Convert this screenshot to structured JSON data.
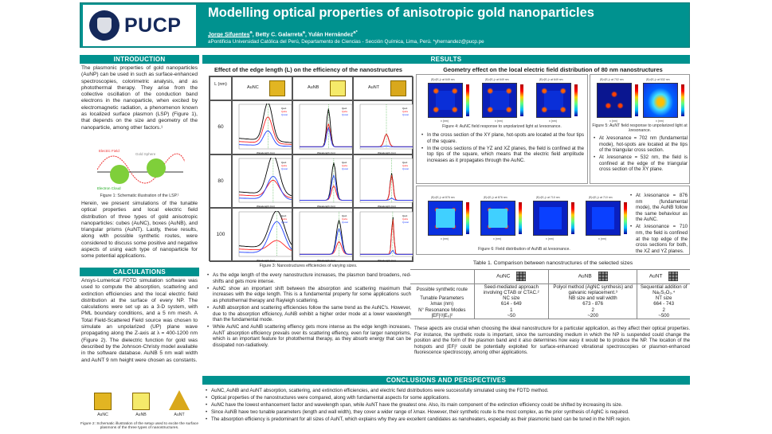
{
  "header": {
    "logo_text": "PUCP",
    "title": "Modelling optical properties of anisotropic gold nanoparticles",
    "authors": [
      {
        "name": "Jorge Sifuentes",
        "sup": "a"
      },
      {
        "name": "Betty C. Galarreta",
        "sup": "a"
      },
      {
        "name": "Yulán Hernández",
        "sup": "a*"
      }
    ],
    "affiliation": "aPontificia Universidad Católica del Perú, Departamento de Ciencias - Sección Química, Lima, Perú. *yhernandez@pucp.pe"
  },
  "intro": {
    "heading": "INTRODUCTION",
    "p1": "The plasmonic properties of gold nanoparticles (AuNP) can be used in such as surface-enhanced spectroscopies, colorimetric analysis, and as photothermal therapy. They arise from the collective oscillation of the conduction band electrons in the nanoparticle, when excited by electromagnetic radiation, a phenomenon known as localized surface plasmon (LSP) (Figure 1), that depends on the size and geometry of the nanoparticle, among other factors.¹",
    "fig1_labels": {
      "field": "Electric Field",
      "sphere": "Gold Sphere",
      "cloud": "Electron Cloud"
    },
    "fig1_caption": "Figure 1: Schematic illustration of the LSP.¹",
    "p2": "Herein, we present simulations of the tunable optical properties and local electric field distribution of three types of gold anisotropic nanoparticles: cubes (AuNC), boxes (AuNB), and triangular prisms (AuNT). Lastly, these results, along with possible synthetic routes, were considered to discuss some positive and negative aspects of using each type of nanoparticle for some potential applications."
  },
  "calc": {
    "heading": "CALCULATIONS",
    "p": "Ansys-Lumerical FDTD simulation software was used to compute the absorption, scattering and extinction efficiencies and the local electric field distribution at the surface of every NP. The calculations were set up as a 3-D system, with PML boundary conditions, and a 5 nm mesh. A Total Field-Scattered Field source was chosen to simulate an unpolarized (UP) plane wave propagating along the Z-axis at λ = 400-1200 nm (Figure 2). The dielectric function for gold was described by the Johnson-Christy model available in the software database. AuNB 5 nm wall width and AuNT 9 nm height were chosen as constants.",
    "shapes": [
      "AuNC",
      "AuNB",
      "AuNT"
    ],
    "fig2_caption": "Figure 2: Schematic illustration of the setup used to excite the surface plasmons of the three types of nanostructures."
  },
  "results": {
    "heading": "RESULTS",
    "edge": {
      "title": "Effect of the edge length (L) on the efficiency of the nanostructures",
      "row_header": "L (nm)",
      "columns": [
        "AuNC",
        "AuNB",
        "AuNT"
      ],
      "rows": [
        "60",
        "80",
        "100"
      ],
      "legend": [
        "Qext",
        "Qabs",
        "Qscat"
      ],
      "xlabel": "Wavelength (nm)",
      "caption": "Figure 3: Nanostructures efficiencies of varying sizes.",
      "bullets": [
        "As the edge length of the every nanostructure increases, the plasmon band broadens, red-shifts and gets more intense.",
        "AuNC show an important shift between the absorption and scattering maximum that increases with the edge length. This is a fundamental property for some applications such as photothermal therapy and Rayleigh scattering.",
        "AuNB absorption and scattering efficiencies follow the same trend as the AuNC's. However, due to the absorption efficiency, AuNB exhibit a higher order mode at a lower wavelength than the fundamental mode.",
        "While AuNC and AuNB scattering effiency gets more intense as the edge length increases, AuNT absorption efficiency prevails over its scattering effiency, even for larger nanoprisms, which is an important feature for photothermal therapy, as they absorb energy that can be dissipated non-radiatively."
      ]
    },
    "geometry": {
      "title": "Geometry effect on the local electric field distribution of 80 nm nanostructures",
      "fig4_maps": [
        "|E|²/|E₀|² at 649 nm",
        "|E|²/|E₀|² at 649 nm",
        "|E|²/|E₀|² at 649 nm"
      ],
      "fig4_caption": "Figure 4: AuNC field response to unpolarized light at λresonance.",
      "fig4_bullets": [
        "In the cross section of the XY plane, hot-spots are located at the four tips of the square.",
        "In the cross sections of the YZ and XZ planes, the field is confined at the top tips of the square, which means that the electric field amplitude increases as it propagates through the AuNC."
      ],
      "fig5_maps": [
        "|E|²/|E₀|² at 702 nm",
        "|E|²/|E₀|² at 532 nm"
      ],
      "fig5_caption": "Figure 5: AuNT field response to unpolarized light at λresonance.",
      "fig5_bullets": [
        "At λresonance = 702 nm (fundamental mode), hot-spots are located at the tips of the triangular cross section.",
        "At λresonance = 532 nm, the field is confined at the edge of the triangular cross section of the XY plane."
      ],
      "fig6_maps": [
        "|E|²/|E₀|² at 876 nm",
        "|E|²/|E₀|² at 876 nm",
        "|E|²/|E₀|² at 710 nm",
        "|E|²/|E₀|² at 710 nm"
      ],
      "fig6_caption": "Figure 6: Field distribution of AuNB at λresonance.",
      "fig6_bullets": [
        "At λresonance = 876 nm (fundamental mode), the AuNB follow the same behaviour as the AuNC.",
        "At λresonance = 710 nm, the field is confined at the top edge of the cross sections for both, the XZ and YZ planes."
      ],
      "axis": "x (nm)"
    },
    "table": {
      "caption": "Table 1. Comparison between nanostructures of the selected sizes",
      "columns": [
        "",
        "AuNC",
        "AuNB",
        "AuNT"
      ],
      "rows": [
        [
          "Possible synthetic route",
          "Seed-mediated approach involving CTAB or CTAC.²",
          "Polyol method (AgNC synthesis) and galvanic replacement.³",
          "Sequential addition of Na₂S₂O₃.⁴"
        ],
        [
          "Tunable Parameters",
          "NC size",
          "NB size and wall width",
          "NT size"
        ],
        [
          "λmax (nm)",
          "614 - 649",
          "673 - 876",
          "664 - 743"
        ],
        [
          "N° Resonance Modes",
          "1",
          "2",
          "2"
        ],
        [
          "|EF|²/|E₀|²",
          "~50",
          "~200",
          "~500"
        ]
      ],
      "note": "These apects are crucial when choosing the ideal nanostructure for a particular application, as they affect their optical properties. For instance, the synthetic route is important, since the surrounding medium in which the NP is suspended could change the position and the form of the plasmon band and it also determines how easy it would be to produce the NP. The location of the hotspots and |EF|² could be potentially exploited for surface-enhanced vibrational spectroscopies or plasmon-enhanced fluorescence spectroscopy, among other applications."
    }
  },
  "conclusions": {
    "heading": "CONCLUSIONS AND PERSPECTIVES",
    "bullets": [
      "AuNC, AuNB and AuNT absorption, scattering, and extinction efficiencies, and electric field distributions were successfully simulated using the FDTD method.",
      "Optical properties of the nanostructures were compared, along with fundamental aspects for some applications.",
      "AuNC have the lowest enhancement factor and wavelength span, while AuNT have the greatest one. Also, its main component of the extinction efficiency could be shifted by increasing its size.",
      "Since AuNB have two tunable parameters (length and wall width), they cover a wider range of λmax. However, their synthetic route is the most complex, as the prior synthesis of AgNC is required.",
      "The absorption efficiency is predominant for all sizes of AuNT, which explains why they are excellent candidates as nanoheaters, especially as their plasmonic band can be tuned in the NIR region."
    ]
  },
  "colors": {
    "teal": "#00928f",
    "navy": "#14285a",
    "ext": "#000000",
    "abs": "#ff2020",
    "scat": "#2040ff"
  }
}
